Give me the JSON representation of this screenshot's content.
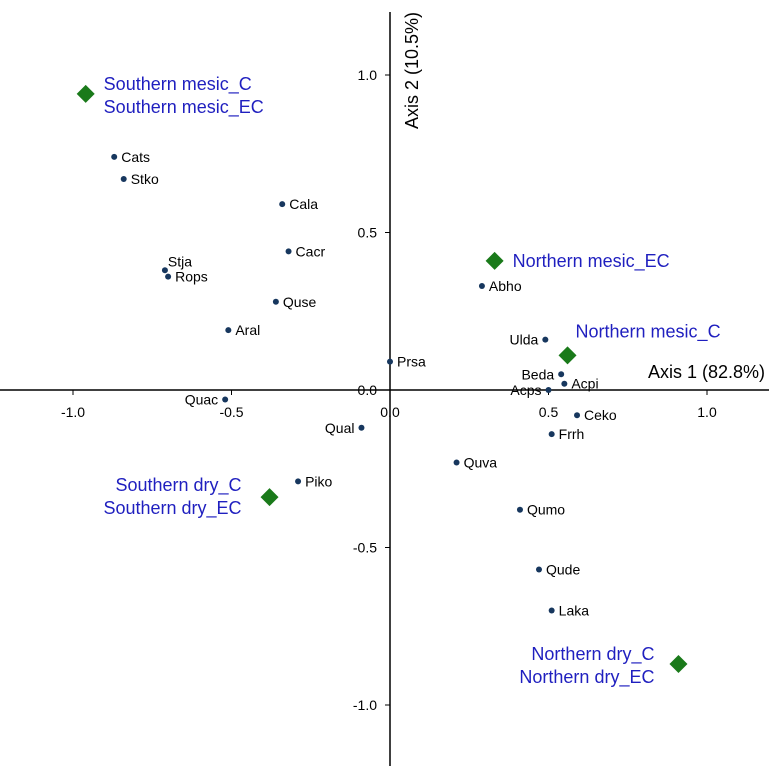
{
  "chart_data": {
    "type": "scatter",
    "xlabel": "Axis 1 (82.8%)",
    "ylabel": "Axis 2 (10.5%)",
    "x_ticks": [
      -1.0,
      -0.5,
      0.0,
      0.5,
      1.0
    ],
    "x_tick_labels": [
      "-1.0",
      "-0.5",
      "0.0",
      "0.5",
      "1.0"
    ],
    "y_ticks": [
      -1.0,
      -0.5,
      0.0,
      0.5,
      1.0
    ],
    "y_tick_labels": [
      "-1.0",
      "-0.5",
      "0.0",
      "0.5",
      "1.0"
    ],
    "xlim": [
      -1.2,
      1.2
    ],
    "ylim": [
      -1.18,
      1.19
    ],
    "grid": false,
    "colors": {
      "species_point": "#17375e",
      "group_marker": "#1a7a1a",
      "group_label": "#1f1fbf",
      "axis": "#000000"
    },
    "species": [
      {
        "label": "Cats",
        "x": -0.87,
        "y": 0.74
      },
      {
        "label": "Stko",
        "x": -0.84,
        "y": 0.67
      },
      {
        "label": "Cala",
        "x": -0.34,
        "y": 0.59
      },
      {
        "label": "Cacr",
        "x": -0.32,
        "y": 0.44
      },
      {
        "label": "Stja",
        "x": -0.71,
        "y": 0.38
      },
      {
        "label": "Rops",
        "x": -0.7,
        "y": 0.36
      },
      {
        "label": "Quse",
        "x": -0.36,
        "y": 0.28
      },
      {
        "label": "Aral",
        "x": -0.51,
        "y": 0.19
      },
      {
        "label": "Quac",
        "x": -0.52,
        "y": -0.03
      },
      {
        "label": "Prsa",
        "x": 0.0,
        "y": 0.09
      },
      {
        "label": "Qual",
        "x": -0.09,
        "y": -0.12
      },
      {
        "label": "Piko",
        "x": -0.29,
        "y": -0.29
      },
      {
        "label": "Abho",
        "x": 0.29,
        "y": 0.33
      },
      {
        "label": "Ulda",
        "x": 0.49,
        "y": 0.16
      },
      {
        "label": "Beda",
        "x": 0.54,
        "y": 0.05
      },
      {
        "label": "Acps",
        "x": 0.5,
        "y": 0.0
      },
      {
        "label": "Acpi",
        "x": 0.55,
        "y": 0.02
      },
      {
        "label": "Ceko",
        "x": 0.59,
        "y": -0.08
      },
      {
        "label": "Frrh",
        "x": 0.51,
        "y": -0.14
      },
      {
        "label": "Quva",
        "x": 0.21,
        "y": -0.23
      },
      {
        "label": "Qumo",
        "x": 0.41,
        "y": -0.38
      },
      {
        "label": "Qude",
        "x": 0.47,
        "y": -0.57
      },
      {
        "label": "Laka",
        "x": 0.51,
        "y": -0.7
      }
    ],
    "groups": [
      {
        "labels": [
          "Southern mesic_C",
          "Southern mesic_EC"
        ],
        "x": -0.96,
        "y": 0.94
      },
      {
        "labels": [
          "Northern mesic_EC"
        ],
        "x": 0.33,
        "y": 0.41
      },
      {
        "labels": [
          "Northern mesic_C"
        ],
        "x": 0.56,
        "y": 0.11
      },
      {
        "labels": [
          "Southern dry_C",
          "Southern dry_EC"
        ],
        "x": -0.38,
        "y": -0.34
      },
      {
        "labels": [
          "Northern dry_C",
          "Northern dry_EC"
        ],
        "x": 0.91,
        "y": -0.87
      }
    ]
  }
}
